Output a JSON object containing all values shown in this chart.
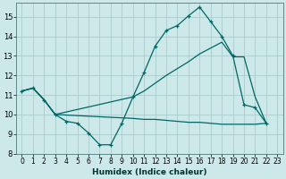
{
  "background_color": "#cce8e8",
  "grid_color": "#aacccc",
  "line_color": "#006666",
  "xlabel": "Humidex (Indice chaleur)",
  "xlim": [
    -0.5,
    23.5
  ],
  "ylim": [
    8,
    15.7
  ],
  "yticks": [
    8,
    9,
    10,
    11,
    12,
    13,
    14,
    15
  ],
  "xticks": [
    0,
    1,
    2,
    3,
    4,
    5,
    6,
    7,
    8,
    9,
    10,
    11,
    12,
    13,
    14,
    15,
    16,
    17,
    18,
    19,
    20,
    21,
    22,
    23
  ],
  "series": [
    {
      "x": [
        0,
        1,
        2,
        3,
        4,
        5,
        6,
        7,
        8,
        9,
        10,
        11,
        12,
        13,
        14,
        15,
        16,
        17,
        18,
        19,
        20,
        21,
        22
      ],
      "y": [
        11.2,
        11.35,
        10.75,
        10.0,
        9.65,
        9.55,
        9.05,
        8.45,
        8.45,
        9.55,
        10.9,
        12.15,
        13.5,
        14.3,
        14.55,
        15.05,
        15.5,
        14.75,
        14.0,
        13.0,
        10.5,
        10.35,
        9.55
      ],
      "marker": true
    },
    {
      "x": [
        0,
        1,
        2,
        3,
        10,
        11,
        12,
        13,
        14,
        15,
        16,
        17,
        18,
        19,
        20,
        21,
        22
      ],
      "y": [
        11.2,
        11.35,
        10.75,
        10.0,
        10.9,
        11.2,
        11.6,
        12.0,
        12.35,
        12.7,
        13.1,
        13.4,
        13.7,
        12.95,
        12.95,
        10.9,
        9.55
      ],
      "marker": false
    },
    {
      "x": [
        0,
        1,
        2,
        3,
        10,
        11,
        12,
        13,
        14,
        15,
        16,
        17,
        18,
        19,
        20,
        21,
        22
      ],
      "y": [
        11.2,
        11.35,
        10.75,
        10.0,
        9.8,
        9.75,
        9.75,
        9.7,
        9.65,
        9.6,
        9.6,
        9.55,
        9.5,
        9.5,
        9.5,
        9.5,
        9.55
      ],
      "marker": false
    }
  ],
  "figsize": [
    3.2,
    2.0
  ],
  "dpi": 100
}
